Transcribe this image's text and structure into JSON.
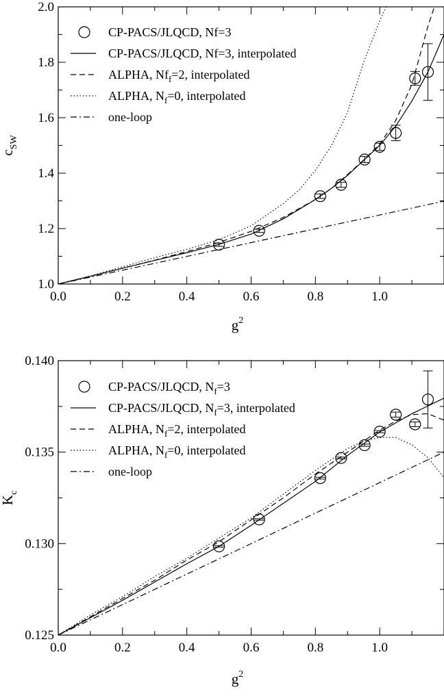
{
  "chart_data": [
    {
      "type": "scatter",
      "xlim": [
        0.0,
        1.2
      ],
      "ylim": [
        1.0,
        2.0
      ],
      "xticks": [
        {
          "v": 0.0,
          "label": "0.0"
        },
        {
          "v": 0.2,
          "label": "0.2"
        },
        {
          "v": 0.4,
          "label": "0.4"
        },
        {
          "v": 0.6,
          "label": "0.6"
        },
        {
          "v": 0.8,
          "label": "0.8"
        },
        {
          "v": 1.0,
          "label": "1.0"
        }
      ],
      "yticks": [
        {
          "v": 1.0,
          "label": "1.0"
        },
        {
          "v": 1.2,
          "label": "1.2"
        },
        {
          "v": 1.4,
          "label": "1.4"
        },
        {
          "v": 1.6,
          "label": "1.6"
        },
        {
          "v": 1.8,
          "label": "1.8"
        },
        {
          "v": 2.0,
          "label": "2.0"
        }
      ],
      "xlabel": {
        "main": "g",
        "sup": "2"
      },
      "ylabel": {
        "main": "c",
        "sub": "SW"
      },
      "legend_position": "top-left",
      "legend": [
        {
          "key": "points",
          "parts": [
            {
              "t": "CP-PACS/JLQCD, Nf=3"
            }
          ]
        },
        {
          "key": "fit",
          "parts": [
            {
              "t": "CP-PACS/JLQCD, Nf=3, interpolated"
            }
          ]
        },
        {
          "key": "alpha2",
          "parts": [
            {
              "t": "ALPHA, Nf"
            },
            {
              "t": "f",
              "sub": true
            },
            {
              "t": "=2, interpolated"
            }
          ]
        },
        {
          "key": "alpha0",
          "parts": [
            {
              "t": "ALPHA, N"
            },
            {
              "t": "f",
              "sub": true
            },
            {
              "t": "=0, interpolated"
            }
          ]
        },
        {
          "key": "oneloop",
          "parts": [
            {
              "t": "one-loop"
            }
          ]
        }
      ],
      "points": [
        {
          "x": 0.5,
          "y": 1.142,
          "err": 0.006
        },
        {
          "x": 0.625,
          "y": 1.192,
          "err": 0.006
        },
        {
          "x": 0.815,
          "y": 1.317,
          "err": 0.008
        },
        {
          "x": 0.88,
          "y": 1.358,
          "err": 0.009
        },
        {
          "x": 0.953,
          "y": 1.449,
          "err": 0.011
        },
        {
          "x": 1.0,
          "y": 1.495,
          "err": 0.013
        },
        {
          "x": 1.05,
          "y": 1.545,
          "err": 0.028
        },
        {
          "x": 1.11,
          "y": 1.742,
          "err": 0.025
        },
        {
          "x": 1.15,
          "y": 1.765,
          "err": 0.102
        }
      ],
      "curves": [
        {
          "key": "fit",
          "style": "solid",
          "x": [
            0.0,
            0.1,
            0.2,
            0.3,
            0.4,
            0.5,
            0.6,
            0.7,
            0.8,
            0.85,
            0.9,
            0.95,
            1.0,
            1.05,
            1.1,
            1.15,
            1.2
          ],
          "y": [
            1.0,
            1.028,
            1.057,
            1.085,
            1.113,
            1.143,
            1.18,
            1.235,
            1.305,
            1.345,
            1.392,
            1.446,
            1.5,
            1.57,
            1.66,
            1.765,
            1.9
          ]
        },
        {
          "key": "alpha2",
          "style": "dashed",
          "x": [
            0.0,
            0.1,
            0.2,
            0.3,
            0.4,
            0.5,
            0.6,
            0.7,
            0.8,
            0.85,
            0.9,
            0.95,
            1.0,
            1.05,
            1.1,
            1.15,
            1.17
          ],
          "y": [
            1.0,
            1.028,
            1.057,
            1.086,
            1.117,
            1.15,
            1.19,
            1.24,
            1.305,
            1.345,
            1.395,
            1.447,
            1.505,
            1.59,
            1.72,
            1.93,
            2.0
          ]
        },
        {
          "key": "alpha0",
          "style": "dotted",
          "x": [
            0.0,
            0.1,
            0.2,
            0.3,
            0.4,
            0.5,
            0.6,
            0.7,
            0.75,
            0.8,
            0.85,
            0.9,
            0.95,
            1.0,
            1.02
          ],
          "y": [
            1.0,
            1.029,
            1.062,
            1.095,
            1.125,
            1.16,
            1.21,
            1.29,
            1.34,
            1.41,
            1.5,
            1.62,
            1.8,
            1.95,
            2.0
          ]
        },
        {
          "key": "oneloop",
          "style": "dashdot",
          "x": [
            0.0,
            1.2
          ],
          "y": [
            1.0,
            1.2988
          ]
        }
      ]
    },
    {
      "type": "scatter",
      "xlim": [
        0.0,
        1.2
      ],
      "ylim": [
        0.125,
        0.14
      ],
      "xticks": [
        {
          "v": 0.0,
          "label": "0.0"
        },
        {
          "v": 0.2,
          "label": "0.2"
        },
        {
          "v": 0.4,
          "label": "0.4"
        },
        {
          "v": 0.6,
          "label": "0.6"
        },
        {
          "v": 0.8,
          "label": "0.8"
        },
        {
          "v": 1.0,
          "label": "1.0"
        }
      ],
      "yticks": [
        {
          "v": 0.125,
          "label": "0.125"
        },
        {
          "v": 0.13,
          "label": "0.130"
        },
        {
          "v": 0.135,
          "label": "0.135"
        },
        {
          "v": 0.14,
          "label": "0.140"
        }
      ],
      "yminor": [
        0.1275,
        0.1325,
        0.1375
      ],
      "xlabel": {
        "main": "g",
        "sup": "2"
      },
      "ylabel": {
        "main": "K",
        "sub": "c"
      },
      "legend_position": "top-left",
      "legend": [
        {
          "key": "points",
          "parts": [
            {
              "t": "CP-PACS/JLQCD, N"
            },
            {
              "t": "f",
              "sub": true
            },
            {
              "t": "=3"
            }
          ]
        },
        {
          "key": "fit",
          "parts": [
            {
              "t": "CP-PACS/JLQCD, N"
            },
            {
              "t": "f",
              "sub": true
            },
            {
              "t": "=3, interpolated"
            }
          ]
        },
        {
          "key": "alpha2",
          "parts": [
            {
              "t": "ALPHA, N"
            },
            {
              "t": "f",
              "sub": true
            },
            {
              "t": "=2, interpolated"
            }
          ]
        },
        {
          "key": "alpha0",
          "parts": [
            {
              "t": "ALPHA, N"
            },
            {
              "t": "f",
              "sub": true
            },
            {
              "t": "=0, interpolated"
            }
          ]
        },
        {
          "key": "oneloop",
          "parts": [
            {
              "t": "one-loop"
            }
          ]
        }
      ],
      "points": [
        {
          "x": 0.5,
          "y": 0.12985,
          "err": 4e-05
        },
        {
          "x": 0.625,
          "y": 0.13132,
          "err": 4e-05
        },
        {
          "x": 0.815,
          "y": 0.13358,
          "err": 5e-05
        },
        {
          "x": 0.88,
          "y": 0.13468,
          "err": 5e-05
        },
        {
          "x": 0.953,
          "y": 0.13538,
          "err": 6e-05
        },
        {
          "x": 1.0,
          "y": 0.13612,
          "err": 6e-05
        },
        {
          "x": 1.05,
          "y": 0.13705,
          "err": 0.00014
        },
        {
          "x": 1.11,
          "y": 0.13652,
          "err": 0.00013
        },
        {
          "x": 1.15,
          "y": 0.13788,
          "err": 0.00156
        }
      ],
      "curves": [
        {
          "key": "fit",
          "style": "solid",
          "x": [
            0.0,
            0.1,
            0.2,
            0.3,
            0.4,
            0.5,
            0.6,
            0.7,
            0.8,
            0.9,
            1.0,
            1.1,
            1.2
          ],
          "y": [
            0.125,
            0.12595,
            0.1269,
            0.1279,
            0.1289,
            0.12985,
            0.131,
            0.1322,
            0.1334,
            0.13482,
            0.1361,
            0.1371,
            0.13795
          ]
        },
        {
          "key": "alpha2",
          "style": "dashed",
          "x": [
            0.0,
            0.1,
            0.2,
            0.3,
            0.4,
            0.5,
            0.6,
            0.7,
            0.8,
            0.9,
            1.0,
            1.05,
            1.1,
            1.15,
            1.2
          ],
          "y": [
            0.125,
            0.126,
            0.127,
            0.128,
            0.1291,
            0.1301,
            0.1313,
            0.1325,
            0.1338,
            0.135,
            0.1362,
            0.1367,
            0.13705,
            0.1371,
            0.13675
          ]
        },
        {
          "key": "alpha0",
          "style": "dotted",
          "x": [
            0.0,
            0.1,
            0.2,
            0.3,
            0.4,
            0.5,
            0.6,
            0.7,
            0.8,
            0.9,
            0.95,
            1.0,
            1.05,
            1.1,
            1.15,
            1.2
          ],
          "y": [
            0.125,
            0.1261,
            0.1271,
            0.1282,
            0.1292,
            0.1303,
            0.1314,
            0.1327,
            0.134,
            0.1352,
            0.1356,
            0.1358,
            0.1358,
            0.1354,
            0.1347,
            0.1336
          ]
        },
        {
          "key": "oneloop",
          "style": "dashdot",
          "x": [
            0.0,
            1.2
          ],
          "y": [
            0.125,
            0.135
          ]
        }
      ]
    }
  ]
}
